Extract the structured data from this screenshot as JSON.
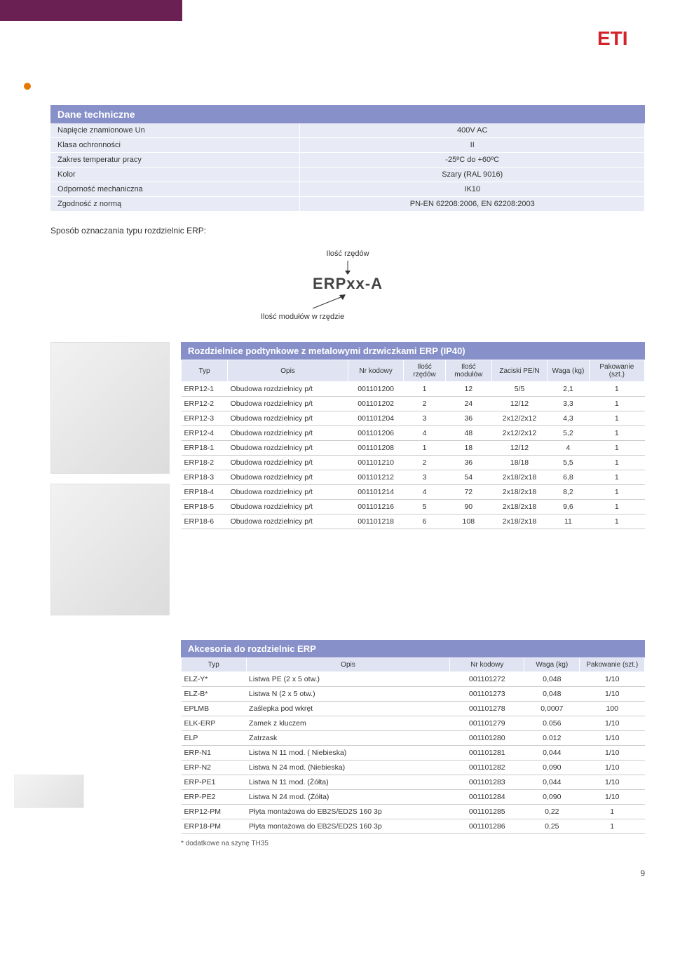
{
  "logo_color": "#d3232a",
  "tech": {
    "title": "Dane techniczne",
    "rows": [
      {
        "label": "Napięcie znamionowe Un",
        "value": "400V AC"
      },
      {
        "label": "Klasa ochronności",
        "value": "II"
      },
      {
        "label": "Zakres temperatur pracy",
        "value": "-25ºC do +60ºC"
      },
      {
        "label": "Kolor",
        "value": "Szary (RAL 9016)"
      },
      {
        "label": "Odporność mechaniczna",
        "value": "IK10"
      },
      {
        "label": "Zgodność z normą",
        "value": "PN-EN 62208:2006, EN 62208:2003"
      }
    ]
  },
  "naming_label": "Sposób oznaczania typu rozdzielnic ERP:",
  "diagram": {
    "top_label": "Ilość rzędów",
    "code": "ERPxx-A",
    "bottom_label": "Ilość modułów w rzędzie"
  },
  "table1": {
    "title": "Rozdzielnice podtynkowe z metalowymi drzwiczkami ERP  (IP40)",
    "cols": [
      "Typ",
      "Opis",
      "Nr kodowy",
      "Ilość rzędów",
      "Ilość modułów",
      "Zaciski PE/N",
      "Waga (kg)",
      "Pakowanie (szt.)"
    ],
    "rows": [
      [
        "ERP12-1",
        "Obudowa rozdzielnicy p/t",
        "001101200",
        "1",
        "12",
        "5/5",
        "2,1",
        "1"
      ],
      [
        "ERP12-2",
        "Obudowa rozdzielnicy p/t",
        "001101202",
        "2",
        "24",
        "12/12",
        "3,3",
        "1"
      ],
      [
        "ERP12-3",
        "Obudowa rozdzielnicy p/t",
        "001101204",
        "3",
        "36",
        "2x12/2x12",
        "4,3",
        "1"
      ],
      [
        "ERP12-4",
        "Obudowa rozdzielnicy p/t",
        "001101206",
        "4",
        "48",
        "2x12/2x12",
        "5,2",
        "1"
      ],
      [
        "ERP18-1",
        "Obudowa rozdzielnicy p/t",
        "001101208",
        "1",
        "18",
        "12/12",
        "4",
        "1"
      ],
      [
        "ERP18-2",
        "Obudowa rozdzielnicy p/t",
        "001101210",
        "2",
        "36",
        "18/18",
        "5,5",
        "1"
      ],
      [
        "ERP18-3",
        "Obudowa rozdzielnicy p/t",
        "001101212",
        "3",
        "54",
        "2x18/2x18",
        "6,8",
        "1"
      ],
      [
        "ERP18-4",
        "Obudowa rozdzielnicy p/t",
        "001101214",
        "4",
        "72",
        "2x18/2x18",
        "8,2",
        "1"
      ],
      [
        "ERP18-5",
        "Obudowa rozdzielnicy p/t",
        "001101216",
        "5",
        "90",
        "2x18/2x18",
        "9,6",
        "1"
      ],
      [
        "ERP18-6",
        "Obudowa rozdzielnicy p/t",
        "001101218",
        "6",
        "108",
        "2x18/2x18",
        "11",
        "1"
      ]
    ]
  },
  "table2": {
    "title": "Akcesoria do rozdzielnic  ERP",
    "cols": [
      "Typ",
      "Opis",
      "Nr kodowy",
      "Waga (kg)",
      "Pakowanie (szt.)"
    ],
    "rows": [
      [
        "ELZ-Y*",
        "Listwa PE  (2 x 5 otw.)",
        "001101272",
        "0,048",
        "1/10"
      ],
      [
        "ELZ-B*",
        "Listwa N  (2 x 5 otw.)",
        "001101273",
        "0,048",
        "1/10"
      ],
      [
        "EPLMB",
        "Zaślepka pod wkręt",
        "001101278",
        "0,0007",
        "100"
      ],
      [
        "ELK-ERP",
        "Zamek z kluczem",
        "001101279",
        "0.056",
        "1/10"
      ],
      [
        "ELP",
        "Zatrzask",
        "001101280",
        "0.012",
        "1/10"
      ],
      [
        "ERP-N1",
        "Listwa  N  11 mod.  ( Niebieska)",
        "001101281",
        "0,044",
        "1/10"
      ],
      [
        "ERP-N2",
        "Listwa  N 24 mod.  (Niebieska)",
        "001101282",
        "0,090",
        "1/10"
      ],
      [
        "ERP-PE1",
        "Listwa N 11 mod.  (Żółta)",
        "001101283",
        "0,044",
        "1/10"
      ],
      [
        "ERP-PE2",
        "Listwa  N 24 mod.  (Żółta)",
        "001101284",
        "0,090",
        "1/10"
      ],
      [
        "ERP12-PM",
        "Płyta montażowa do EB2S/ED2S 160 3p",
        "001101285",
        "0,22",
        "1"
      ],
      [
        "ERP18-PM",
        "Płyta montażowa do EB2S/ED2S 160 3p",
        "001101286",
        "0,25",
        "1"
      ]
    ]
  },
  "footnote": "* dodatkowe na szynę TH35",
  "page_num": "9"
}
